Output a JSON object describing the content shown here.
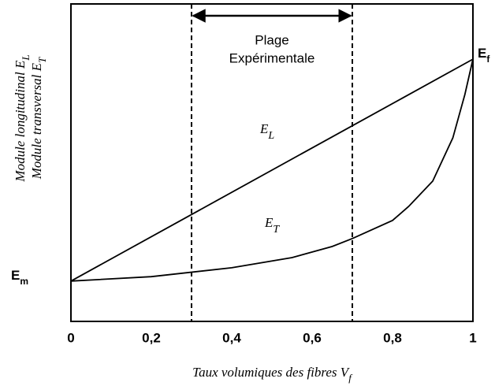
{
  "chart_data": {
    "type": "line",
    "xlim": [
      0,
      1
    ],
    "ylim": [
      0,
      1
    ],
    "xticks": [
      0,
      {
        "value": 0.2,
        "label": "0,2"
      },
      {
        "value": 0.4,
        "label": "0,4"
      },
      {
        "value": 0.6,
        "label": "0,6"
      },
      {
        "value": 0.8,
        "label": "0,8"
      },
      1
    ],
    "x_label": {
      "text": "Taux volumiques des fibres V",
      "sub": "f"
    },
    "y_label": [
      {
        "text": "Module longitudinal E",
        "sub": "L"
      },
      {
        "text": "Module transversal E",
        "sub": "T"
      }
    ],
    "series": [
      {
        "color": "#000000",
        "x": [
          0,
          1
        ],
        "values": [
          0.127,
          0.826
        ]
      },
      {
        "color": "#000000",
        "x": [
          0,
          0.2,
          0.4,
          0.55,
          0.65,
          0.7,
          0.8,
          0.84,
          0.9,
          0.95,
          0.98,
          1
        ],
        "values": [
          0.127,
          0.141,
          0.169,
          0.201,
          0.236,
          0.261,
          0.318,
          0.362,
          0.442,
          0.578,
          0.715,
          0.826
        ]
      }
    ],
    "curve_labels": [
      {
        "text": "E",
        "sub": "L"
      },
      {
        "text": "E",
        "sub": "T"
      }
    ],
    "endpoint_labels": [
      {
        "text": "E",
        "sub": "m"
      },
      {
        "text": "E",
        "sub": "f"
      }
    ],
    "range": [
      0.3,
      0.7
    ],
    "range_label": [
      "Plage",
      "Expérimentale"
    ]
  }
}
